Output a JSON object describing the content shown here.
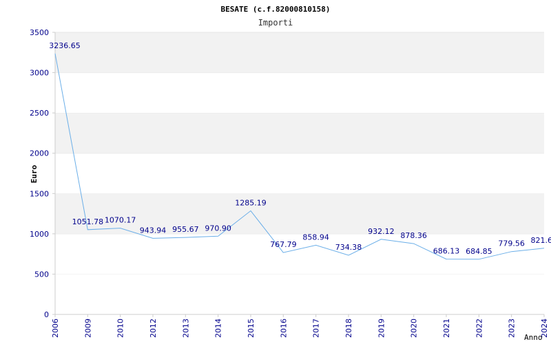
{
  "chart_data": {
    "type": "line",
    "title": "BESATE (c.f.82000810158)",
    "subtitle": "Importi",
    "xlabel": "Anno",
    "ylabel": "Euro",
    "ylim": [
      0,
      3500
    ],
    "yticks": [
      0,
      500,
      1000,
      1500,
      2000,
      2500,
      3000,
      3500
    ],
    "grid": "horizontal alternating bands",
    "categories": [
      "2006",
      "2009",
      "2010",
      "2012",
      "2013",
      "2014",
      "2015",
      "2016",
      "2017",
      "2018",
      "2019",
      "2020",
      "2021",
      "2022",
      "2023",
      "2024"
    ],
    "values": [
      3236.65,
      1051.78,
      1070.17,
      943.94,
      955.67,
      970.9,
      1285.19,
      767.79,
      858.94,
      734.38,
      932.12,
      878.36,
      686.13,
      684.85,
      779.56,
      821.6
    ],
    "data_labels": [
      "3236.65",
      "1051.78",
      "1070.17",
      "943.94",
      "955.67",
      "970.90",
      "1285.19",
      "767.79",
      "858.94",
      "734.38",
      "932.12",
      "878.36",
      "686.13",
      "684.85",
      "779.56",
      "821.6"
    ],
    "colors": {
      "line": "#6aaee8",
      "band": "#f2f2f2",
      "text": "#00008b"
    }
  }
}
